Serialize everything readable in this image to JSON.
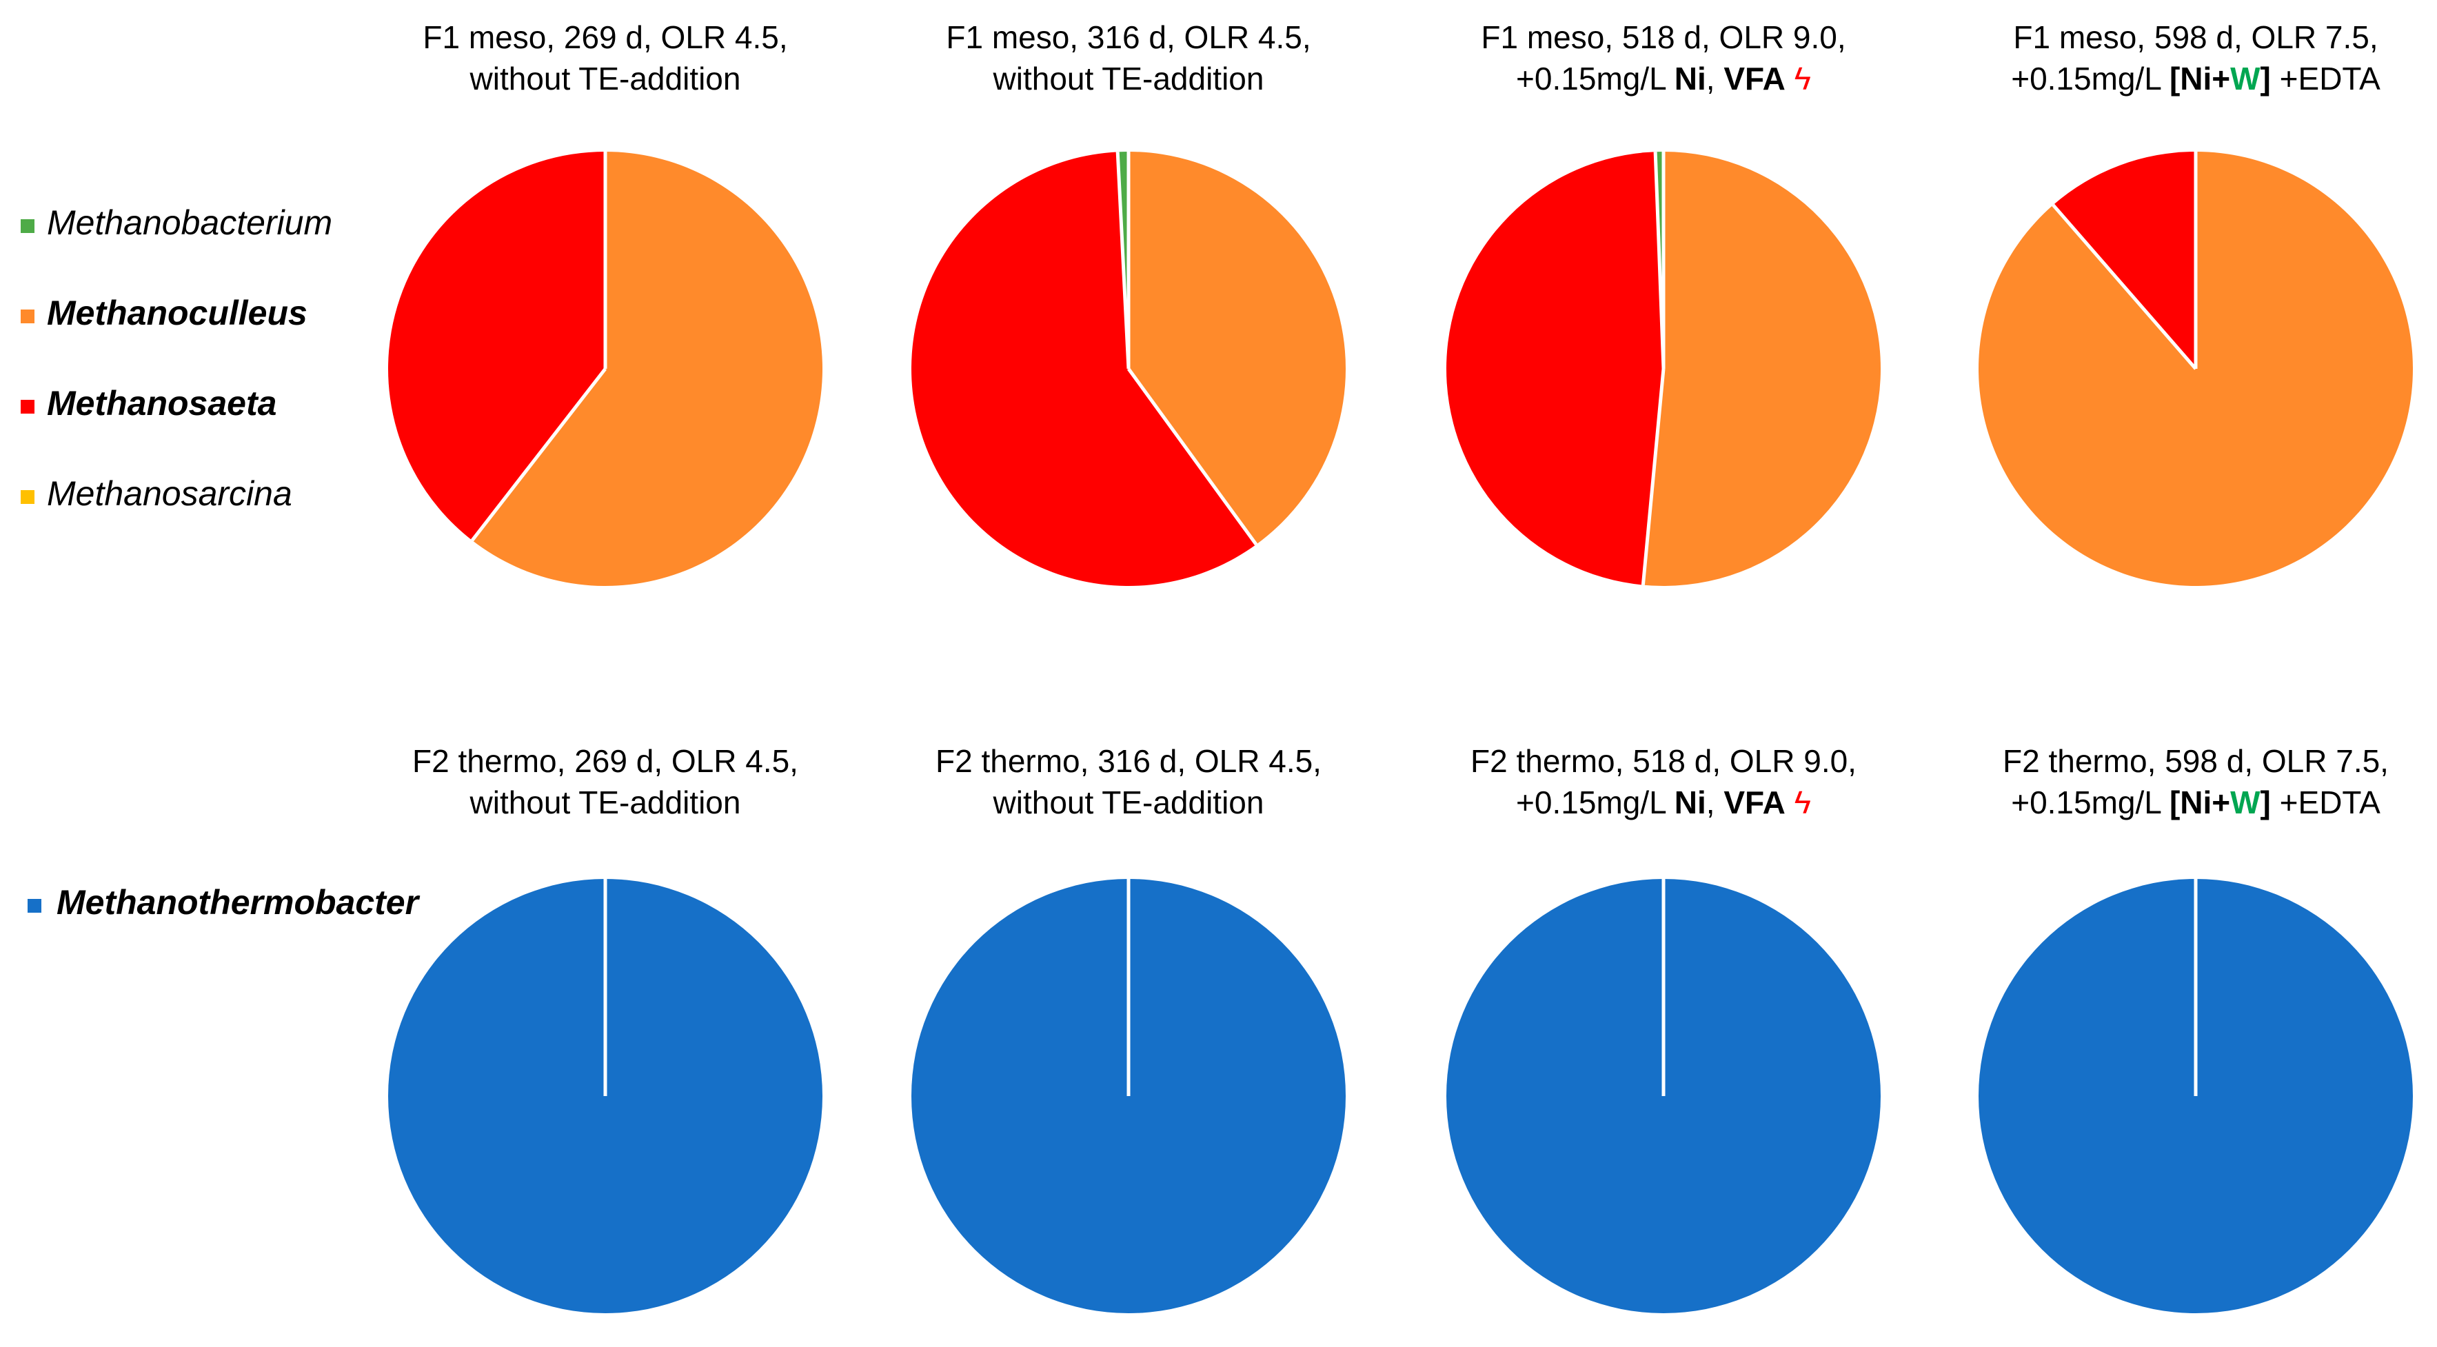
{
  "colors": {
    "Methanobacterium": "#4eab47",
    "Methanoculleus": "#ff8a2b",
    "Methanosaeta": "#ff0000",
    "Methanosarcina": "#ffc000",
    "Methanothermobacter": "#1670c8",
    "W_highlight": "#00a651",
    "vfa_symbol": "#ff0000"
  },
  "chart_data": [
    {
      "type": "pie",
      "row": "F1",
      "title_lines": [
        [
          {
            "text": "F1 meso, 269 d, OLR 4.5,"
          }
        ],
        [
          {
            "text": "without TE-addition"
          }
        ]
      ],
      "slices": [
        {
          "label": "Methanoculleus",
          "value": 60.5
        },
        {
          "label": "Methanosaeta",
          "value": 39.5
        }
      ]
    },
    {
      "type": "pie",
      "row": "F1",
      "title_lines": [
        [
          {
            "text": "F1 meso, 316 d, OLR 4.5,"
          }
        ],
        [
          {
            "text": "without TE-addition"
          }
        ]
      ],
      "slices": [
        {
          "label": "Methanoculleus",
          "value": 40.0
        },
        {
          "label": "Methanosaeta",
          "value": 59.2
        },
        {
          "label": "Methanobacterium",
          "value": 0.8
        }
      ]
    },
    {
      "type": "pie",
      "row": "F1",
      "title_lines": [
        [
          {
            "text": "F1 meso, 518 d, OLR 9.0,"
          }
        ],
        [
          {
            "text": "+0.15mg/L "
          },
          {
            "text": "Ni",
            "bold": true
          },
          {
            "text": ", "
          },
          {
            "text": "VFA",
            "bold": true
          },
          {
            "text": " ϟ",
            "color": "vfa_symbol"
          }
        ]
      ],
      "slices": [
        {
          "label": "Methanoculleus",
          "value": 51.5
        },
        {
          "label": "Methanosaeta",
          "value": 47.9
        },
        {
          "label": "Methanobacterium",
          "value": 0.6
        }
      ]
    },
    {
      "type": "pie",
      "row": "F1",
      "title_lines": [
        [
          {
            "text": "F1 meso, 598 d, OLR 7.5,"
          }
        ],
        [
          {
            "text": "+0.15mg/L "
          },
          {
            "text": "[Ni+",
            "bold": true
          },
          {
            "text": "W",
            "bold": true,
            "color": "W_highlight"
          },
          {
            "text": "]",
            "bold": true
          },
          {
            "text": " +EDTA"
          }
        ]
      ],
      "slices": [
        {
          "label": "Methanoculleus",
          "value": 88.6
        },
        {
          "label": "Methanosaeta",
          "value": 11.4
        }
      ]
    },
    {
      "type": "pie",
      "row": "F2",
      "title_lines": [
        [
          {
            "text": "F2 thermo, 269 d, OLR 4.5,"
          }
        ],
        [
          {
            "text": "without TE-addition"
          }
        ]
      ],
      "slices": [
        {
          "label": "Methanothermobacter",
          "value": 100
        }
      ]
    },
    {
      "type": "pie",
      "row": "F2",
      "title_lines": [
        [
          {
            "text": "F2 thermo, 316 d, OLR 4.5,"
          }
        ],
        [
          {
            "text": "without TE-addition"
          }
        ]
      ],
      "slices": [
        {
          "label": "Methanothermobacter",
          "value": 100
        }
      ]
    },
    {
      "type": "pie",
      "row": "F2",
      "title_lines": [
        [
          {
            "text": "F2 thermo, 518 d, OLR 9.0,"
          }
        ],
        [
          {
            "text": "+0.15mg/L "
          },
          {
            "text": "Ni",
            "bold": true
          },
          {
            "text": ", "
          },
          {
            "text": "VFA",
            "bold": true
          },
          {
            "text": " ϟ",
            "color": "vfa_symbol"
          }
        ]
      ],
      "slices": [
        {
          "label": "Methanothermobacter",
          "value": 100
        }
      ]
    },
    {
      "type": "pie",
      "row": "F2",
      "title_lines": [
        [
          {
            "text": "F2 thermo, 598 d, OLR 7.5,"
          }
        ],
        [
          {
            "text": "+0.15mg/L "
          },
          {
            "text": "[Ni+",
            "bold": true
          },
          {
            "text": "W",
            "bold": true,
            "color": "W_highlight"
          },
          {
            "text": "]",
            "bold": true
          },
          {
            "text": " +EDTA"
          }
        ]
      ],
      "slices": [
        {
          "label": "Methanothermobacter",
          "value": 100
        }
      ]
    }
  ],
  "legends": {
    "F1": [
      {
        "label": "Methanobacterium",
        "bold": false
      },
      {
        "label": "Methanoculleus",
        "bold": true
      },
      {
        "label": "Methanosaeta",
        "bold": true
      },
      {
        "label": "Methanosarcina",
        "bold": false
      }
    ],
    "F2": [
      {
        "label": "Methanothermobacter",
        "bold": true
      }
    ]
  }
}
